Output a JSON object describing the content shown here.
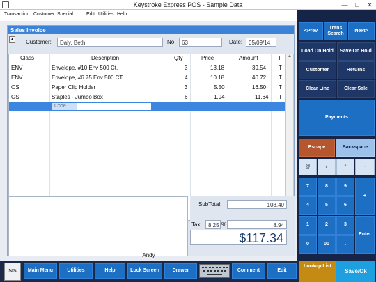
{
  "window": {
    "title": "Keystroke Express POS - Sample Data",
    "minimize": "—",
    "maximize": "□",
    "close": "✕"
  },
  "menu": [
    "Transaction",
    "Customer",
    "Special",
    "Edit",
    "Utilities",
    "Help"
  ],
  "invoice": {
    "heading": "Sales Invoice",
    "nav": "▲",
    "customer_label": "Customer:",
    "customer": "Daly, Beth",
    "no_label": "No.",
    "number": "63",
    "date_label": "Date:",
    "date": "05/09/14"
  },
  "table": {
    "headers": [
      "Class",
      "Description",
      "Qty",
      "Price",
      "Amount",
      "T"
    ],
    "rows": [
      [
        "ENV",
        "Envelope, #10 Env 500 Ct.",
        "3",
        "13.18",
        "39.54",
        "T"
      ],
      [
        "ENV",
        "Envelope, #6.75 Env 500 CT.",
        "4",
        "10.18",
        "40.72",
        "T"
      ],
      [
        "OS",
        "Paper Clip Holder",
        "3",
        "5.50",
        "16.50",
        "T"
      ],
      [
        "OS",
        "Staples - Jumbo Box",
        "6",
        "1.94",
        "11.64",
        "T"
      ]
    ],
    "code_label": "Code",
    "code_value": ""
  },
  "totals": {
    "subtotal_label": "SubTotal:",
    "subtotal": "108.40",
    "tax_label": "Tax",
    "tax_rate": "8.25",
    "tax_pct": "%",
    "tax": "8.94",
    "total": "$117.34"
  },
  "cashier": "Andy",
  "side": {
    "prev": "<Prev",
    "trans_search": "Trans Search",
    "next": "Next>",
    "load_on_hold": "Load On Hold",
    "save_on_hold": "Save On Hold",
    "customer": "Customer",
    "returns": "Returns",
    "clear_line": "Clear Line",
    "clear_sale": "Clear Sale",
    "payments": "Payments",
    "escape": "Escape",
    "backspace": "Backspace",
    "keys": [
      "@",
      "/",
      "*",
      "-",
      "7",
      "8",
      "9",
      "+",
      "4",
      "5",
      "6",
      "1",
      "2",
      "3",
      "Enter",
      "0",
      "00",
      "."
    ]
  },
  "bottom": {
    "logo": "SIS",
    "main_menu": "Main Menu",
    "utilities": "Utilities",
    "help": "Help",
    "lock_screen": "Lock Screen",
    "drawer": "Drawer",
    "comment": "Comment",
    "edit": "Edit",
    "lookup_list": "Lookup List",
    "save_ok": "Save/Ok"
  },
  "colors": {
    "accent": "#1d6fc3",
    "panel": "#162447",
    "escape": "#b6562e",
    "lookup": "#c58a12",
    "save": "#1d9fe0"
  }
}
